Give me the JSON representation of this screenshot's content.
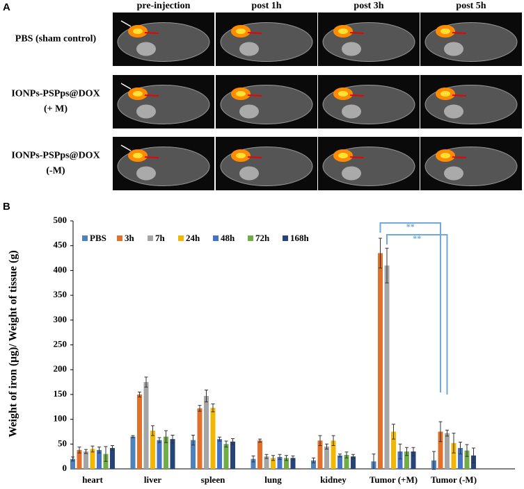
{
  "panel_a": {
    "label": "A",
    "columns": [
      "pre-injection",
      "post 1h",
      "post 3h",
      "post 5h"
    ],
    "rows": [
      [
        "PBS (sham control)"
      ],
      [
        "IONPs-PSPps@DOX",
        "(+ M)"
      ],
      [
        "IONPs-PSPps@DOX",
        "(-M)"
      ]
    ]
  },
  "panel_b": {
    "label": "B"
  },
  "chart_data": {
    "type": "bar",
    "ylabel": "Weight of iron (μg)/ Weight of tissue (g)",
    "categories": [
      "heart",
      "liver",
      "spleen",
      "lung",
      "kidney",
      "Tumor (+M)",
      "Tumor (-M)"
    ],
    "series": [
      {
        "name": "PBS",
        "color": "#4f81bd",
        "values": [
          20,
          65,
          58,
          20,
          17,
          15,
          17
        ],
        "errors": [
          4,
          2,
          10,
          6,
          5,
          15,
          18
        ]
      },
      {
        "name": "3h",
        "color": "#e0702a",
        "values": [
          38,
          150,
          122,
          57,
          57,
          435,
          75
        ],
        "errors": [
          6,
          5,
          6,
          3,
          10,
          30,
          20
        ]
      },
      {
        "name": "7h",
        "color": "#a5a5a5",
        "values": [
          35,
          175,
          147,
          25,
          45,
          410,
          72
        ],
        "errors": [
          4,
          10,
          12,
          4,
          5,
          35,
          6
        ]
      },
      {
        "name": "24h",
        "color": "#f2b705",
        "values": [
          40,
          77,
          123,
          22,
          57,
          75,
          52
        ],
        "errors": [
          6,
          10,
          8,
          5,
          10,
          15,
          20
        ]
      },
      {
        "name": "48h",
        "color": "#4472c4",
        "values": [
          38,
          58,
          60,
          24,
          27,
          35,
          42
        ],
        "errors": [
          6,
          5,
          4,
          5,
          3,
          15,
          12
        ]
      },
      {
        "name": "72h",
        "color": "#70ad47",
        "values": [
          30,
          65,
          50,
          22,
          28,
          35,
          37
        ],
        "errors": [
          15,
          12,
          6,
          5,
          6,
          8,
          12
        ]
      },
      {
        "name": "168h",
        "color": "#264478",
        "values": [
          42,
          60,
          55,
          22,
          25,
          35,
          27
        ],
        "errors": [
          5,
          8,
          6,
          4,
          4,
          8,
          15
        ]
      }
    ],
    "ylim": [
      0,
      500
    ],
    "yticks": [
      0,
      50,
      100,
      150,
      200,
      250,
      300,
      350,
      400,
      450,
      500
    ],
    "annotations": [
      "**",
      "**"
    ]
  }
}
